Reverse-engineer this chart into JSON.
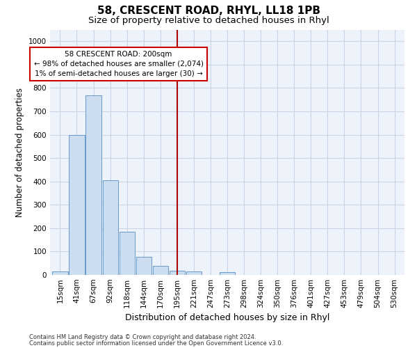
{
  "title": "58, CRESCENT ROAD, RHYL, LL18 1PB",
  "subtitle": "Size of property relative to detached houses in Rhyl",
  "xlabel": "Distribution of detached houses by size in Rhyl",
  "ylabel": "Number of detached properties",
  "categories": [
    "15sqm",
    "41sqm",
    "67sqm",
    "92sqm",
    "118sqm",
    "144sqm",
    "170sqm",
    "195sqm",
    "221sqm",
    "247sqm",
    "273sqm",
    "298sqm",
    "324sqm",
    "350sqm",
    "376sqm",
    "401sqm",
    "427sqm",
    "453sqm",
    "479sqm",
    "504sqm",
    "530sqm"
  ],
  "bar_heights": [
    15,
    600,
    770,
    405,
    185,
    78,
    38,
    18,
    14,
    0,
    13,
    0,
    0,
    0,
    0,
    0,
    0,
    0,
    0,
    0,
    0
  ],
  "bar_color": "#ccddf0",
  "bar_edge_color": "#6699cc",
  "grid_color": "#c8d4e8",
  "background_color": "#eef2fa",
  "vline_x_index": 7,
  "vline_color": "#aa0000",
  "annotation_line1": "58 CRESCENT ROAD: 200sqm",
  "annotation_line2": "← 98% of detached houses are smaller (2,074)",
  "annotation_line3": "1% of semi-detached houses are larger (30) →",
  "annotation_box_color": "#cc0000",
  "ylim": [
    0,
    1050
  ],
  "yticks": [
    0,
    100,
    200,
    300,
    400,
    500,
    600,
    700,
    800,
    900,
    1000
  ],
  "footer1": "Contains HM Land Registry data © Crown copyright and database right 2024.",
  "footer2": "Contains public sector information licensed under the Open Government Licence v3.0.",
  "title_fontsize": 11,
  "subtitle_fontsize": 9.5,
  "tick_fontsize": 7.5,
  "ylabel_fontsize": 8.5,
  "xlabel_fontsize": 9,
  "annotation_fontsize": 7.5,
  "footer_fontsize": 6
}
